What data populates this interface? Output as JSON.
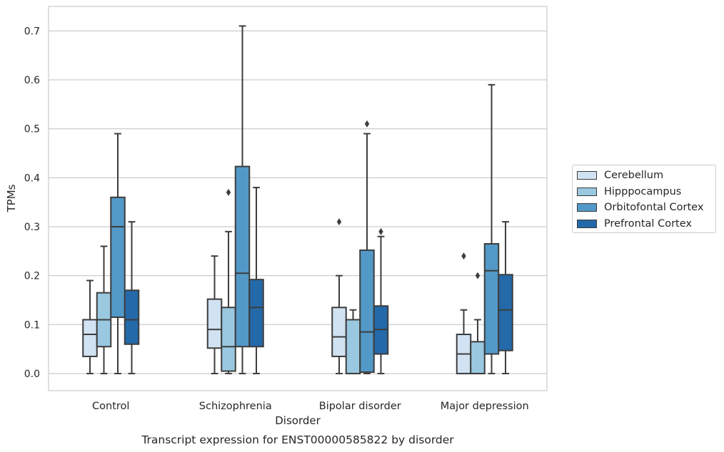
{
  "chart_data": {
    "type": "box",
    "title": "Transcript expression for ENST00000585822 by disorder",
    "xlabel": "Disorder",
    "ylabel": "TPMs",
    "ylim": [
      -0.035,
      0.75
    ],
    "yticks": [
      "0.0",
      "0.1",
      "0.2",
      "0.3",
      "0.4",
      "0.5",
      "0.6",
      "0.7"
    ],
    "grid": "horizontal",
    "legend_position": "right",
    "categories": [
      "Control",
      "Schizophrenia",
      "Bipolar disorder",
      "Major depression"
    ],
    "series": [
      {
        "name": "Cerebellum",
        "color": "#d1e2f2",
        "boxes": [
          {
            "whisker_low": 0.0,
            "q1": 0.035,
            "median": 0.08,
            "q3": 0.11,
            "whisker_high": 0.19,
            "outliers": []
          },
          {
            "whisker_low": 0.0,
            "q1": 0.052,
            "median": 0.09,
            "q3": 0.152,
            "whisker_high": 0.24,
            "outliers": []
          },
          {
            "whisker_low": 0.0,
            "q1": 0.035,
            "median": 0.075,
            "q3": 0.135,
            "whisker_high": 0.2,
            "outliers": [
              0.31
            ]
          },
          {
            "whisker_low": 0.0,
            "q1": 0.0,
            "median": 0.04,
            "q3": 0.08,
            "whisker_high": 0.13,
            "outliers": [
              0.24
            ]
          }
        ]
      },
      {
        "name": "Hipppocampus",
        "color": "#9ac8e0",
        "boxes": [
          {
            "whisker_low": 0.0,
            "q1": 0.055,
            "median": 0.11,
            "q3": 0.165,
            "whisker_high": 0.26,
            "outliers": []
          },
          {
            "whisker_low": 0.0,
            "q1": 0.005,
            "median": 0.055,
            "q3": 0.135,
            "whisker_high": 0.29,
            "outliers": [
              0.37
            ]
          },
          {
            "whisker_low": 0.0,
            "q1": 0.0,
            "median": 0.0,
            "q3": 0.11,
            "whisker_high": 0.13,
            "outliers": []
          },
          {
            "whisker_low": 0.0,
            "q1": 0.0,
            "median": 0.0,
            "q3": 0.065,
            "whisker_high": 0.11,
            "outliers": [
              0.2
            ]
          }
        ]
      },
      {
        "name": "Orbitofontal Cortex",
        "color": "#5299c8",
        "boxes": [
          {
            "whisker_low": 0.0,
            "q1": 0.115,
            "median": 0.3,
            "q3": 0.36,
            "whisker_high": 0.49,
            "outliers": []
          },
          {
            "whisker_low": 0.0,
            "q1": 0.055,
            "median": 0.205,
            "q3": 0.423,
            "whisker_high": 0.71,
            "outliers": []
          },
          {
            "whisker_low": 0.0,
            "q1": 0.003,
            "median": 0.085,
            "q3": 0.252,
            "whisker_high": 0.49,
            "outliers": [
              0.51
            ]
          },
          {
            "whisker_low": 0.0,
            "q1": 0.04,
            "median": 0.21,
            "q3": 0.265,
            "whisker_high": 0.59,
            "outliers": []
          }
        ]
      },
      {
        "name": "Prefrontal Cortex",
        "color": "#2469a9",
        "boxes": [
          {
            "whisker_low": 0.0,
            "q1": 0.06,
            "median": 0.11,
            "q3": 0.17,
            "whisker_high": 0.31,
            "outliers": []
          },
          {
            "whisker_low": 0.0,
            "q1": 0.055,
            "median": 0.135,
            "q3": 0.192,
            "whisker_high": 0.38,
            "outliers": []
          },
          {
            "whisker_low": 0.0,
            "q1": 0.04,
            "median": 0.09,
            "q3": 0.138,
            "whisker_high": 0.28,
            "outliers": [
              0.29
            ]
          },
          {
            "whisker_low": 0.0,
            "q1": 0.047,
            "median": 0.13,
            "q3": 0.202,
            "whisker_high": 0.31,
            "outliers": []
          }
        ]
      }
    ]
  }
}
